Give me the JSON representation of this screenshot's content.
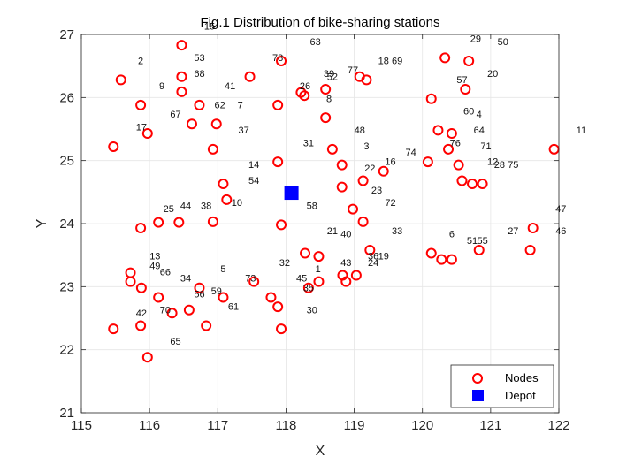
{
  "chart_data": {
    "type": "scatter",
    "title": "Fig.1 Distribution of bike-sharing stations",
    "xlabel": "X",
    "ylabel": "Y",
    "xlim": [
      115,
      122
    ],
    "ylim": [
      21,
      27
    ],
    "xticks": [
      "115",
      "116",
      "117",
      "118",
      "119",
      "120",
      "121",
      "122"
    ],
    "yticks": [
      "21",
      "22",
      "23",
      "24",
      "25",
      "26",
      "27"
    ],
    "grid": true,
    "legend_position": "bottom-right",
    "colors": {
      "nodes": "#ff0000",
      "depot": "#0000ff",
      "grid": "#e6e6e6",
      "axis": "#262626"
    },
    "depot": {
      "name": "Depot",
      "x": 118.08,
      "y": 24.49,
      "marker": "square"
    },
    "series": [
      {
        "name": "Nodes",
        "marker": "circle",
        "points": [
          {
            "x": 115.47,
            "y": 25.22
          },
          {
            "x": 115.58,
            "y": 26.28
          },
          {
            "x": 115.87,
            "y": 25.88
          },
          {
            "x": 115.97,
            "y": 25.43
          },
          {
            "x": 116.47,
            "y": 26.83
          },
          {
            "x": 116.47,
            "y": 26.33
          },
          {
            "x": 116.47,
            "y": 26.09
          },
          {
            "x": 116.62,
            "y": 25.58
          },
          {
            "x": 116.73,
            "y": 25.88
          },
          {
            "x": 116.98,
            "y": 25.58
          },
          {
            "x": 116.93,
            "y": 25.18
          },
          {
            "x": 117.08,
            "y": 24.63
          },
          {
            "x": 117.13,
            "y": 24.38
          },
          {
            "x": 116.93,
            "y": 24.03
          },
          {
            "x": 116.43,
            "y": 24.02
          },
          {
            "x": 116.13,
            "y": 24.02
          },
          {
            "x": 115.87,
            "y": 23.93
          },
          {
            "x": 115.72,
            "y": 23.22
          },
          {
            "x": 115.72,
            "y": 23.08
          },
          {
            "x": 115.88,
            "y": 22.98
          },
          {
            "x": 116.13,
            "y": 22.83
          },
          {
            "x": 116.33,
            "y": 22.58
          },
          {
            "x": 116.58,
            "y": 22.63
          },
          {
            "x": 116.73,
            "y": 22.98
          },
          {
            "x": 117.08,
            "y": 22.83
          },
          {
            "x": 116.83,
            "y": 22.38
          },
          {
            "x": 115.87,
            "y": 22.38
          },
          {
            "x": 115.47,
            "y": 22.33
          },
          {
            "x": 115.97,
            "y": 21.88
          },
          {
            "x": 117.47,
            "y": 26.33
          },
          {
            "x": 117.88,
            "y": 25.88
          },
          {
            "x": 117.88,
            "y": 24.98
          },
          {
            "x": 117.93,
            "y": 26.58
          },
          {
            "x": 118.22,
            "y": 26.08
          },
          {
            "x": 118.27,
            "y": 26.03
          },
          {
            "x": 118.58,
            "y": 26.13
          },
          {
            "x": 118.58,
            "y": 25.68
          },
          {
            "x": 118.68,
            "y": 25.18
          },
          {
            "x": 118.82,
            "y": 24.93
          },
          {
            "x": 118.82,
            "y": 24.58
          },
          {
            "x": 119.08,
            "y": 26.33
          },
          {
            "x": 119.18,
            "y": 26.28
          },
          {
            "x": 119.13,
            "y": 24.68
          },
          {
            "x": 119.43,
            "y": 24.83
          },
          {
            "x": 118.98,
            "y": 24.23
          },
          {
            "x": 119.13,
            "y": 24.03
          },
          {
            "x": 117.93,
            "y": 23.98
          },
          {
            "x": 117.53,
            "y": 23.08
          },
          {
            "x": 117.78,
            "y": 22.83
          },
          {
            "x": 117.88,
            "y": 22.68
          },
          {
            "x": 117.93,
            "y": 22.33
          },
          {
            "x": 118.28,
            "y": 23.53
          },
          {
            "x": 118.48,
            "y": 23.48
          },
          {
            "x": 118.33,
            "y": 22.98
          },
          {
            "x": 118.48,
            "y": 23.08
          },
          {
            "x": 118.83,
            "y": 23.18
          },
          {
            "x": 118.88,
            "y": 23.08
          },
          {
            "x": 119.03,
            "y": 23.18
          },
          {
            "x": 119.23,
            "y": 23.58
          },
          {
            "x": 120.08,
            "y": 24.98
          },
          {
            "x": 120.13,
            "y": 25.98
          },
          {
            "x": 120.23,
            "y": 25.48
          },
          {
            "x": 120.33,
            "y": 26.63
          },
          {
            "x": 120.38,
            "y": 25.18
          },
          {
            "x": 120.43,
            "y": 25.43
          },
          {
            "x": 120.53,
            "y": 24.93
          },
          {
            "x": 120.63,
            "y": 26.13
          },
          {
            "x": 120.68,
            "y": 26.58
          },
          {
            "x": 120.58,
            "y": 24.68
          },
          {
            "x": 120.73,
            "y": 24.63
          },
          {
            "x": 120.88,
            "y": 24.63
          },
          {
            "x": 120.13,
            "y": 23.53
          },
          {
            "x": 120.28,
            "y": 23.43
          },
          {
            "x": 120.43,
            "y": 23.43
          },
          {
            "x": 120.83,
            "y": 23.58
          },
          {
            "x": 121.58,
            "y": 23.58
          },
          {
            "x": 121.62,
            "y": 23.93
          },
          {
            "x": 121.93,
            "y": 25.18
          }
        ]
      }
    ],
    "annotations": [
      {
        "text": "1",
        "x": 118.47,
        "y": 23.23
      },
      {
        "text": "2",
        "x": 115.87,
        "y": 26.53
      },
      {
        "text": "3",
        "x": 119.18,
        "y": 25.18
      },
      {
        "text": "4",
        "x": 120.83,
        "y": 25.68
      },
      {
        "text": "5",
        "x": 117.08,
        "y": 23.23
      },
      {
        "text": "6",
        "x": 120.43,
        "y": 23.78
      },
      {
        "text": "7",
        "x": 117.33,
        "y": 25.83
      },
      {
        "text": "8",
        "x": 118.63,
        "y": 25.93
      },
      {
        "text": "9",
        "x": 116.18,
        "y": 26.13
      },
      {
        "text": "10",
        "x": 117.28,
        "y": 24.28
      },
      {
        "text": "11",
        "x": 122.33,
        "y": 25.43
      },
      {
        "text": "12",
        "x": 121.03,
        "y": 24.93
      },
      {
        "text": "13",
        "x": 116.08,
        "y": 23.43
      },
      {
        "text": "14",
        "x": 117.53,
        "y": 24.88
      },
      {
        "text": "15",
        "x": 116.88,
        "y": 27.08
      },
      {
        "text": "16",
        "x": 119.53,
        "y": 24.93
      },
      {
        "text": "17",
        "x": 115.88,
        "y": 25.48
      },
      {
        "text": "18",
        "x": 119.43,
        "y": 26.53
      },
      {
        "text": "19",
        "x": 119.43,
        "y": 23.43
      },
      {
        "text": "20",
        "x": 121.03,
        "y": 26.33
      },
      {
        "text": "21",
        "x": 118.68,
        "y": 23.83
      },
      {
        "text": "22",
        "x": 119.23,
        "y": 24.83
      },
      {
        "text": "23",
        "x": 119.33,
        "y": 24.48
      },
      {
        "text": "24",
        "x": 119.28,
        "y": 23.33
      },
      {
        "text": "25",
        "x": 116.28,
        "y": 24.18
      },
      {
        "text": "26",
        "x": 118.28,
        "y": 26.13
      },
      {
        "text": "27",
        "x": 121.33,
        "y": 23.83
      },
      {
        "text": "28",
        "x": 121.13,
        "y": 24.88
      },
      {
        "text": "29",
        "x": 120.78,
        "y": 26.88
      },
      {
        "text": "30",
        "x": 118.38,
        "y": 22.58
      },
      {
        "text": "31",
        "x": 118.33,
        "y": 25.23
      },
      {
        "text": "32",
        "x": 117.98,
        "y": 23.33
      },
      {
        "text": "33",
        "x": 119.63,
        "y": 23.83
      },
      {
        "text": "34",
        "x": 116.53,
        "y": 23.08
      },
      {
        "text": "35",
        "x": 118.33,
        "y": 22.93
      },
      {
        "text": "36",
        "x": 119.28,
        "y": 23.43
      },
      {
        "text": "37",
        "x": 117.38,
        "y": 25.43
      },
      {
        "text": "38",
        "x": 116.83,
        "y": 24.23
      },
      {
        "text": "39",
        "x": 118.63,
        "y": 26.33
      },
      {
        "text": "40",
        "x": 118.88,
        "y": 23.78
      },
      {
        "text": "41",
        "x": 117.18,
        "y": 26.13
      },
      {
        "text": "42",
        "x": 115.88,
        "y": 22.53
      },
      {
        "text": "43",
        "x": 118.88,
        "y": 23.33
      },
      {
        "text": "44",
        "x": 116.53,
        "y": 24.23
      },
      {
        "text": "45",
        "x": 118.23,
        "y": 23.08
      },
      {
        "text": "46",
        "x": 122.03,
        "y": 23.83
      },
      {
        "text": "47",
        "x": 122.03,
        "y": 24.18
      },
      {
        "text": "48",
        "x": 119.08,
        "y": 25.43
      },
      {
        "text": "49",
        "x": 116.08,
        "y": 23.28
      },
      {
        "text": "50",
        "x": 121.18,
        "y": 26.83
      },
      {
        "text": "51",
        "x": 120.73,
        "y": 23.68
      },
      {
        "text": "52",
        "x": 118.68,
        "y": 26.28
      },
      {
        "text": "53",
        "x": 116.73,
        "y": 26.58
      },
      {
        "text": "54",
        "x": 117.53,
        "y": 24.63
      },
      {
        "text": "55",
        "x": 120.88,
        "y": 23.68
      },
      {
        "text": "56",
        "x": 116.73,
        "y": 22.83
      },
      {
        "text": "57",
        "x": 120.58,
        "y": 26.23
      },
      {
        "text": "58",
        "x": 118.38,
        "y": 24.23
      },
      {
        "text": "59",
        "x": 116.98,
        "y": 22.88
      },
      {
        "text": "60",
        "x": 120.68,
        "y": 25.73
      },
      {
        "text": "61",
        "x": 117.23,
        "y": 22.63
      },
      {
        "text": "62",
        "x": 117.03,
        "y": 25.83
      },
      {
        "text": "63",
        "x": 118.43,
        "y": 26.83
      },
      {
        "text": "64",
        "x": 120.83,
        "y": 25.43
      },
      {
        "text": "65",
        "x": 116.38,
        "y": 22.08
      },
      {
        "text": "66",
        "x": 116.23,
        "y": 23.18
      },
      {
        "text": "67",
        "x": 116.38,
        "y": 25.68
      },
      {
        "text": "68",
        "x": 116.73,
        "y": 26.33
      },
      {
        "text": "69",
        "x": 119.63,
        "y": 26.53
      },
      {
        "text": "70",
        "x": 116.23,
        "y": 22.58
      },
      {
        "text": "71",
        "x": 120.93,
        "y": 25.18
      },
      {
        "text": "72",
        "x": 119.53,
        "y": 24.28
      },
      {
        "text": "73",
        "x": 117.48,
        "y": 23.08
      },
      {
        "text": "74",
        "x": 119.83,
        "y": 25.08
      },
      {
        "text": "75",
        "x": 121.33,
        "y": 24.88
      },
      {
        "text": "76",
        "x": 120.48,
        "y": 25.23
      },
      {
        "text": "77",
        "x": 118.98,
        "y": 26.38
      },
      {
        "text": "78",
        "x": 117.88,
        "y": 26.58
      }
    ]
  }
}
